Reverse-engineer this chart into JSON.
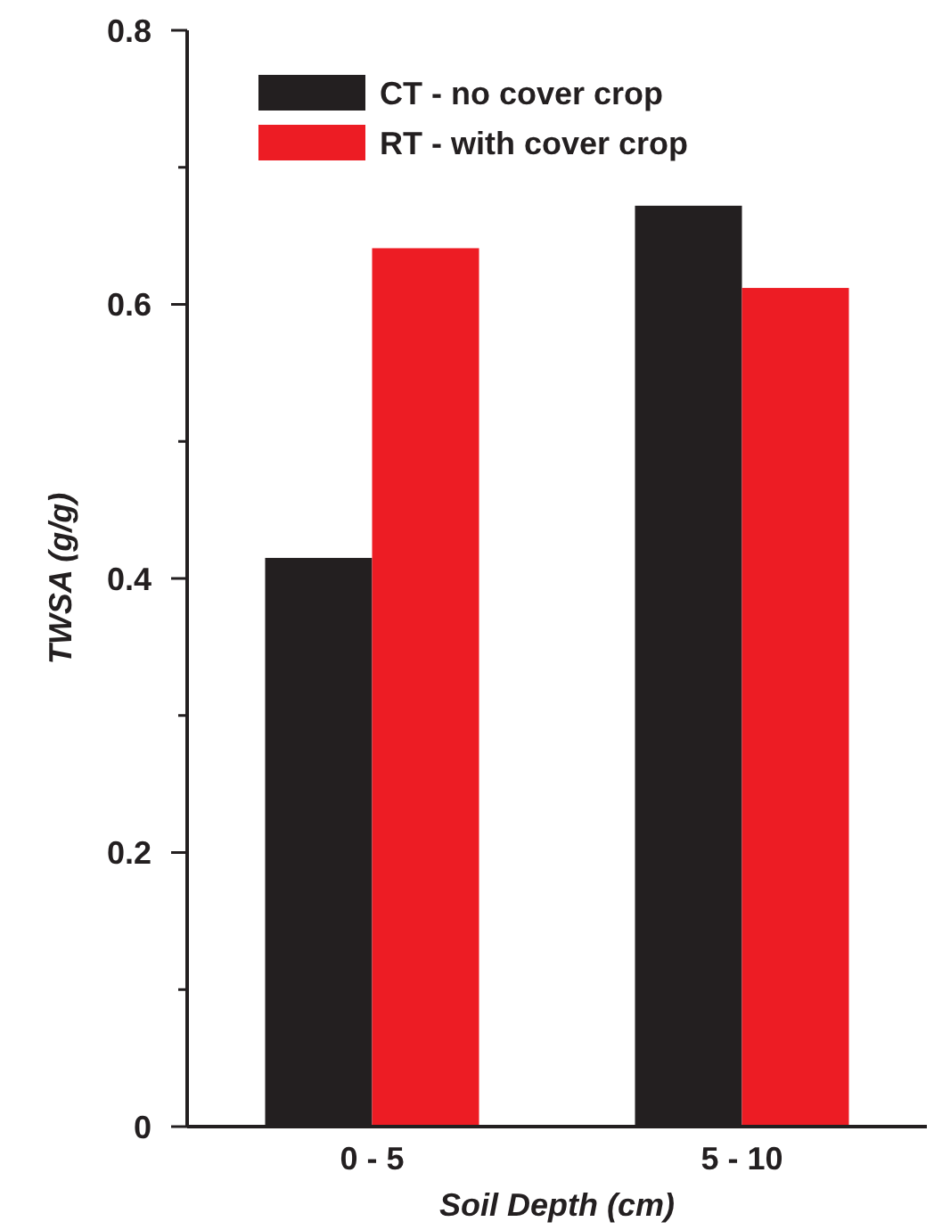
{
  "chart_data": {
    "type": "bar",
    "xlabel": "Soil Depth (cm)",
    "ylabel": "TWSA (g/g)",
    "categories": [
      "0 - 5",
      "5 - 10"
    ],
    "series": [
      {
        "name": "CT - no cover crop",
        "color": "#231f20",
        "values": [
          0.415,
          0.672
        ]
      },
      {
        "name": "RT - with cover crop",
        "color": "#ed1c24",
        "values": [
          0.641,
          0.612
        ]
      }
    ],
    "ylim": [
      0,
      0.8
    ],
    "yticks": [
      0,
      {
        "value": 0.1,
        "label": null
      },
      0.2,
      {
        "value": 0.3,
        "label": null
      },
      0.4,
      {
        "value": 0.5,
        "label": null
      },
      0.6,
      {
        "value": 0.7,
        "label": null
      },
      0.8
    ],
    "grid": false,
    "legend": "top left"
  }
}
